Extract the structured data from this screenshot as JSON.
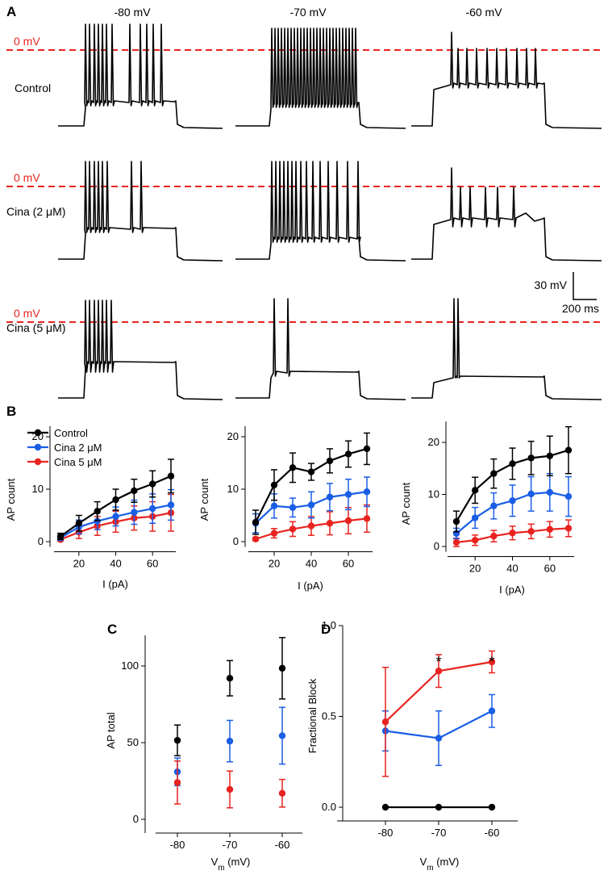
{
  "panel_labels": {
    "a": "A",
    "b": "B",
    "c": "C",
    "d": "D"
  },
  "panelA": {
    "voltages": [
      "-80 mV",
      "-70 mV",
      "-60 mV"
    ],
    "rows": [
      "Control",
      "Cina (2 μM)",
      "Cina (5 μM)"
    ],
    "zero_label": "0 mV",
    "scale_v": "30 mV",
    "scale_t": "200 ms",
    "colors": {
      "trace": "#000000",
      "zero_line": "#e8231f"
    }
  },
  "colors": {
    "control": "#000000",
    "cina2": "#1a5ee6",
    "cina5": "#e8231f"
  },
  "chart_data": [
    {
      "type": "line",
      "id": "B1",
      "title": "-80 mV",
      "xlabel": "I (pA)",
      "ylabel": "AP count",
      "x": [
        10,
        20,
        30,
        40,
        50,
        60,
        70
      ],
      "xticks": [
        20,
        40,
        60
      ],
      "xlim": [
        5,
        75
      ],
      "ylim": [
        -1,
        22
      ],
      "yticks": [
        0,
        10,
        20
      ],
      "legend": [
        "Control",
        "Cina 2 μM",
        "Cina 5 μM"
      ],
      "series": [
        {
          "name": "Control",
          "color": "#000000",
          "values": [
            1.0,
            3.5,
            5.8,
            8.0,
            9.7,
            11.0,
            12.5
          ],
          "err": [
            0.6,
            1.5,
            1.8,
            2.0,
            2.2,
            2.5,
            3.2
          ]
        },
        {
          "name": "Cina 2 μM",
          "color": "#1a5ee6",
          "values": [
            0.7,
            2.8,
            3.9,
            4.8,
            5.6,
            6.3,
            7.0
          ],
          "err": [
            0.4,
            1.3,
            1.6,
            1.8,
            2.3,
            2.8,
            2.9
          ]
        },
        {
          "name": "Cina 5 μM",
          "color": "#e8231f",
          "values": [
            0.4,
            1.8,
            3.0,
            3.8,
            4.5,
            4.8,
            5.5
          ],
          "err": [
            0.3,
            1.2,
            1.8,
            2.0,
            2.3,
            2.8,
            3.5
          ]
        }
      ]
    },
    {
      "type": "line",
      "id": "B2",
      "title": "-70 mV",
      "xlabel": "I (pA)",
      "ylabel": "AP count",
      "x": [
        10,
        20,
        30,
        40,
        50,
        60,
        70
      ],
      "xticks": [
        20,
        40,
        60
      ],
      "xlim": [
        5,
        75
      ],
      "ylim": [
        -1,
        22
      ],
      "yticks": [
        0,
        10,
        20
      ],
      "series": [
        {
          "name": "Control",
          "color": "#000000",
          "values": [
            3.7,
            10.8,
            14.1,
            13.3,
            15.4,
            16.7,
            17.7
          ],
          "err": [
            2.3,
            2.9,
            2.8,
            1.6,
            2.3,
            2.5,
            3.0
          ]
        },
        {
          "name": "Cina 2 μM",
          "color": "#1a5ee6",
          "values": [
            3.5,
            6.8,
            6.5,
            7.0,
            8.5,
            9.0,
            9.5
          ],
          "err": [
            1.8,
            2.3,
            1.8,
            2.5,
            2.6,
            2.9,
            2.8
          ]
        },
        {
          "name": "Cina 5 μM",
          "color": "#e8231f",
          "values": [
            0.5,
            1.6,
            2.4,
            3.0,
            3.5,
            4.0,
            4.4
          ],
          "err": [
            0.3,
            0.9,
            1.4,
            1.8,
            2.2,
            2.5,
            2.6
          ]
        }
      ]
    },
    {
      "type": "line",
      "id": "B3",
      "title": "-60 mV",
      "xlabel": "I (pA)",
      "ylabel": "AP count",
      "x": [
        10,
        20,
        30,
        40,
        50,
        60,
        70
      ],
      "xticks": [
        20,
        40,
        60
      ],
      "xlim": [
        5,
        75
      ],
      "ylim": [
        -1,
        24
      ],
      "yticks": [
        0,
        10,
        20
      ],
      "series": [
        {
          "name": "Control",
          "color": "#000000",
          "values": [
            4.8,
            10.8,
            14.0,
            15.9,
            17.0,
            17.4,
            18.5
          ],
          "err": [
            2.0,
            2.5,
            2.8,
            3.0,
            3.2,
            3.8,
            4.5
          ]
        },
        {
          "name": "Cina 2 μM",
          "color": "#1a5ee6",
          "values": [
            2.5,
            5.5,
            7.8,
            8.8,
            10.1,
            10.4,
            9.6
          ],
          "err": [
            1.0,
            2.0,
            2.5,
            3.0,
            3.3,
            3.6,
            3.8
          ]
        },
        {
          "name": "Cina 5 μM",
          "color": "#e8231f",
          "values": [
            0.8,
            1.2,
            2.0,
            2.6,
            2.9,
            3.3,
            3.5
          ],
          "err": [
            0.8,
            1.0,
            1.1,
            1.3,
            1.4,
            1.5,
            1.6
          ]
        }
      ]
    },
    {
      "type": "scatter",
      "id": "C",
      "xlabel": "V_m (mV)",
      "ylabel": "AP total",
      "categories": [
        "-80",
        "-70",
        "-60"
      ],
      "ylim": [
        -3,
        120
      ],
      "yticks": [
        0,
        50,
        100
      ],
      "series": [
        {
          "name": "Control",
          "color": "#000000",
          "values": [
            51.5,
            92.0,
            98.5
          ],
          "err": [
            10.0,
            11.5,
            20.0
          ]
        },
        {
          "name": "Cina 2 μM",
          "color": "#1a5ee6",
          "values": [
            31.0,
            51.0,
            54.5
          ],
          "err": [
            9.0,
            13.5,
            18.5
          ]
        },
        {
          "name": "Cina 5 μM",
          "color": "#e8231f",
          "values": [
            24.0,
            19.5,
            17.0
          ],
          "err": [
            14.0,
            12.0,
            9.0
          ]
        }
      ]
    },
    {
      "type": "line",
      "id": "D",
      "xlabel": "V_m (mV)",
      "ylabel": "Fractional Block",
      "categories": [
        "-80",
        "-70",
        "-60"
      ],
      "ylim": [
        -0.08,
        1.0
      ],
      "yticks": [
        0.0,
        0.5,
        1.0
      ],
      "ytick_labels": [
        "0.0",
        "0.5",
        "1.0"
      ],
      "annotations": [
        {
          "category": "-70",
          "text": "*"
        },
        {
          "category": "-60",
          "text": "*"
        }
      ],
      "series": [
        {
          "name": "Control",
          "color": "#000000",
          "values": [
            0.0,
            0.0,
            0.0
          ],
          "err": [
            0,
            0,
            0
          ]
        },
        {
          "name": "Cina 2 μM",
          "color": "#1a5ee6",
          "values": [
            0.42,
            0.38,
            0.53
          ],
          "err": [
            0.11,
            0.15,
            0.09
          ]
        },
        {
          "name": "Cina 5 μM",
          "color": "#e8231f",
          "values": [
            0.47,
            0.75,
            0.8
          ],
          "err": [
            0.3,
            0.09,
            0.06
          ]
        }
      ]
    }
  ]
}
